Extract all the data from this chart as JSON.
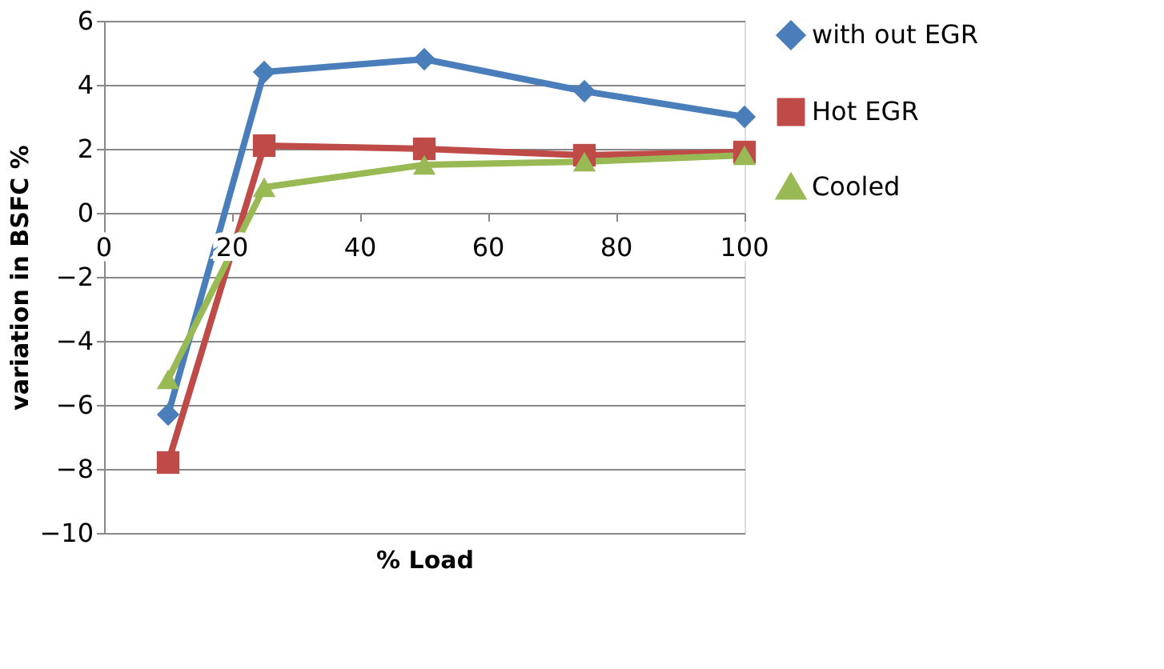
{
  "chart_data": {
    "type": "line",
    "xlabel": "% Load",
    "ylabel": "variation in BSFC %",
    "x": [
      10,
      25,
      50,
      75,
      100
    ],
    "series": [
      {
        "name": "with out EGR",
        "color": "#4a7ebb",
        "marker": "diamond",
        "values": [
          -6.3,
          4.4,
          4.8,
          3.8,
          3.0
        ]
      },
      {
        "name": "Hot EGR",
        "color": "#be4b48",
        "marker": "square",
        "values": [
          -7.8,
          2.1,
          2.0,
          1.8,
          1.9
        ]
      },
      {
        "name": "Cooled",
        "color": "#98b954",
        "marker": "triangle",
        "values": [
          -5.2,
          0.8,
          1.5,
          1.6,
          1.8
        ]
      }
    ],
    "xlim": [
      0,
      100
    ],
    "xticks": [
      0,
      20,
      40,
      60,
      80,
      100
    ],
    "ylim": [
      -10,
      6
    ],
    "yticks": [
      -10,
      -8,
      -6,
      -4,
      -2,
      0,
      2,
      4,
      6
    ],
    "grid": "y",
    "legend": "right"
  }
}
